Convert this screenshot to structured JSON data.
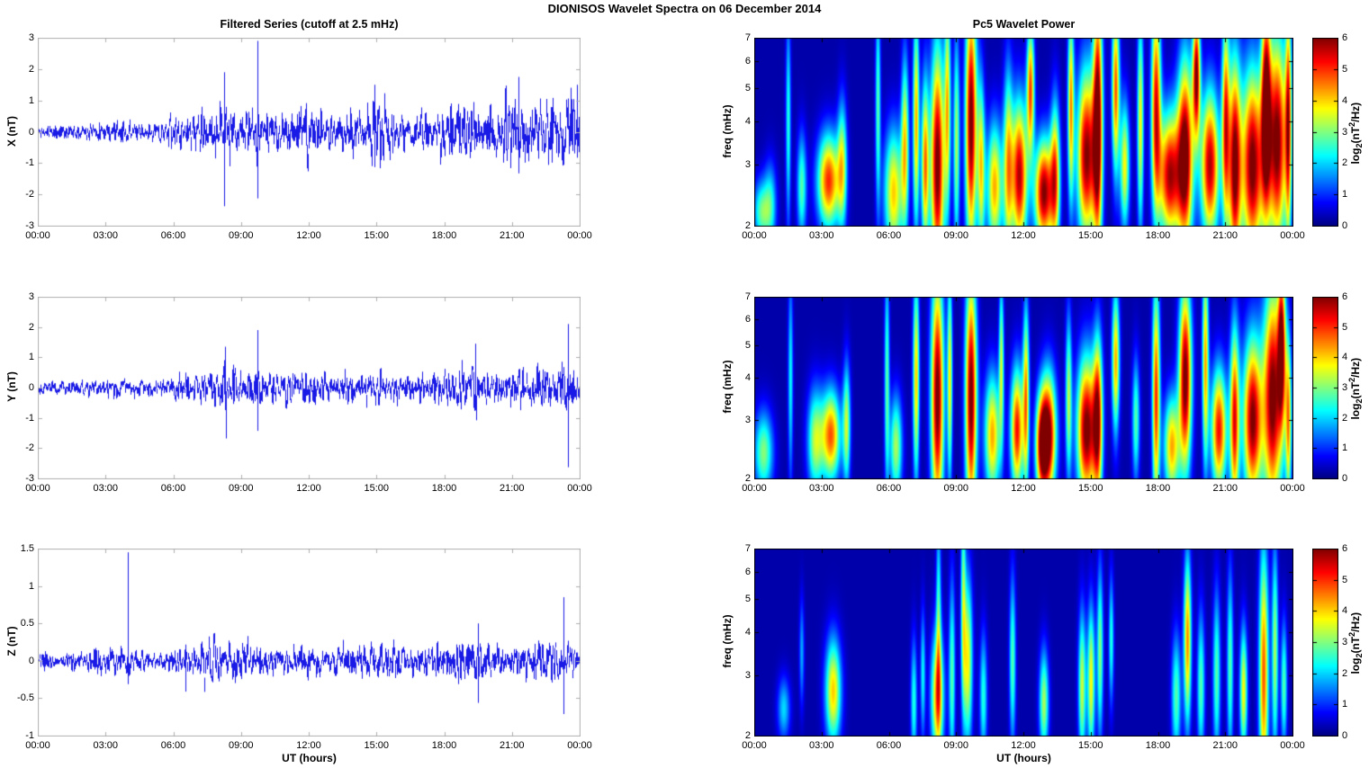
{
  "title": "DIONISOS Wavelet Spectra on 06 December  2014",
  "titles": {
    "left_column": "Filtered Series (cutoff at 2.5 mHz)",
    "right_column": "Pc5 Wavelet Power"
  },
  "time_axis": {
    "label": "UT (hours)",
    "tick_labels": [
      "00:00",
      "03:00",
      "06:00",
      "09:00",
      "12:00",
      "15:00",
      "18:00",
      "21:00",
      "00:00"
    ]
  },
  "colorbar": {
    "tick_labels": [
      "0",
      "1",
      "2",
      "3",
      "4",
      "5",
      "6"
    ],
    "label_parts": [
      "log",
      "2",
      "(nT",
      "2",
      "/Hz)"
    ],
    "clim": [
      0,
      6
    ],
    "colormap": "jet"
  },
  "colors": {
    "series_line": "#1a1ae6",
    "axis_frame_timeseries": "#b0b0b0",
    "axis_frame_spectrogram": "#000000",
    "background": "#ffffff",
    "spectrogram_low": "#00008f",
    "spectrogram_high": "#800000"
  },
  "chart_data": [
    {
      "type": "line",
      "id": "filtered-series-x",
      "title": "Filtered Series (cutoff at 2.5 mHz)",
      "ylabel": "X (nT)",
      "xlabel": "",
      "ylim": [
        -3,
        3
      ],
      "ytick_labels": [
        "3",
        "2",
        "1",
        "0",
        "-1",
        "-2",
        "-3"
      ],
      "x_hours": [
        0,
        24
      ],
      "noise_seed": 11,
      "envelope_peak_nT": [
        [
          0,
          0.3
        ],
        [
          2,
          0.3
        ],
        [
          3,
          0.45
        ],
        [
          3.7,
          0.55
        ],
        [
          4,
          0.4
        ],
        [
          5,
          0.3
        ],
        [
          5.5,
          0.5
        ],
        [
          6,
          0.7
        ],
        [
          7,
          0.8
        ],
        [
          8,
          1.0
        ],
        [
          8.3,
          1.2
        ],
        [
          9,
          0.8
        ],
        [
          9.7,
          1.2
        ],
        [
          10,
          0.8
        ],
        [
          10.7,
          0.9
        ],
        [
          11,
          0.8
        ],
        [
          11.8,
          1.2
        ],
        [
          12.5,
          0.9
        ],
        [
          13,
          0.8
        ],
        [
          14,
          1.2
        ],
        [
          15,
          1.4
        ],
        [
          15.5,
          1.2
        ],
        [
          16,
          0.9
        ],
        [
          17,
          0.8
        ],
        [
          18,
          1.1
        ],
        [
          19,
          1.2
        ],
        [
          20,
          1.3
        ],
        [
          21,
          1.4
        ],
        [
          22,
          1.3
        ],
        [
          23,
          1.6
        ],
        [
          24,
          1.6
        ]
      ],
      "spikes_hour_up_down_nT": [
        [
          8.25,
          1.9,
          -2.35
        ],
        [
          9.7,
          2.9,
          -2.1
        ],
        [
          14.9,
          1.5,
          -1.1
        ],
        [
          21.3,
          1.75,
          -1.3
        ],
        [
          23.9,
          1.5,
          -0.8
        ]
      ]
    },
    {
      "type": "line",
      "id": "filtered-series-y",
      "ylabel": "Y (nT)",
      "xlabel": "",
      "ylim": [
        -3,
        3
      ],
      "ytick_labels": [
        "3",
        "2",
        "1",
        "0",
        "-1",
        "-2",
        "-3"
      ],
      "x_hours": [
        0,
        24
      ],
      "noise_seed": 22,
      "envelope_peak_nT": [
        [
          0,
          0.3
        ],
        [
          2,
          0.3
        ],
        [
          3,
          0.4
        ],
        [
          3.7,
          0.5
        ],
        [
          5,
          0.3
        ],
        [
          6,
          0.6
        ],
        [
          7,
          0.6
        ],
        [
          8,
          0.9
        ],
        [
          8.3,
          1.0
        ],
        [
          9,
          0.7
        ],
        [
          9.7,
          1.0
        ],
        [
          10,
          0.6
        ],
        [
          11,
          0.7
        ],
        [
          12,
          0.7
        ],
        [
          13,
          0.6
        ],
        [
          14,
          0.8
        ],
        [
          15,
          0.8
        ],
        [
          16,
          0.6
        ],
        [
          17,
          0.5
        ],
        [
          18,
          0.9
        ],
        [
          19,
          1.0
        ],
        [
          19.5,
          1.1
        ],
        [
          20,
          0.7
        ],
        [
          21,
          0.8
        ],
        [
          22,
          0.9
        ],
        [
          23,
          0.9
        ],
        [
          23.5,
          1.2
        ],
        [
          24,
          0.7
        ]
      ],
      "spikes_hour_up_down_nT": [
        [
          8.3,
          1.35,
          -1.65
        ],
        [
          9.7,
          1.9,
          -1.4
        ],
        [
          19.4,
          1.45,
          -1.05
        ],
        [
          23.5,
          2.1,
          -2.6
        ]
      ]
    },
    {
      "type": "line",
      "id": "filtered-series-z",
      "ylabel": "Z (nT)",
      "xlabel": "UT (hours)",
      "ylim": [
        -1,
        1.5
      ],
      "ytick_labels": [
        "1.5",
        "1",
        "0.5",
        "0",
        "-0.5",
        "-1"
      ],
      "x_hours": [
        0,
        24
      ],
      "noise_seed": 33,
      "envelope_peak_nT": [
        [
          0,
          0.18
        ],
        [
          2,
          0.15
        ],
        [
          3,
          0.25
        ],
        [
          3.8,
          0.3
        ],
        [
          5,
          0.15
        ],
        [
          6,
          0.25
        ],
        [
          7,
          0.3
        ],
        [
          8,
          0.4
        ],
        [
          8.5,
          0.35
        ],
        [
          9,
          0.35
        ],
        [
          10,
          0.3
        ],
        [
          11,
          0.25
        ],
        [
          12,
          0.3
        ],
        [
          13,
          0.25
        ],
        [
          14,
          0.3
        ],
        [
          15,
          0.35
        ],
        [
          16,
          0.25
        ],
        [
          17,
          0.2
        ],
        [
          18,
          0.3
        ],
        [
          19,
          0.45
        ],
        [
          20,
          0.3
        ],
        [
          21,
          0.3
        ],
        [
          22,
          0.35
        ],
        [
          23,
          0.4
        ],
        [
          24,
          0.25
        ]
      ],
      "spikes_hour_up_down_nT": [
        [
          3.95,
          1.45,
          -0.3
        ],
        [
          6.5,
          0.15,
          -0.4
        ],
        [
          19.5,
          0.5,
          -0.55
        ],
        [
          23.3,
          0.85,
          -0.7
        ]
      ]
    },
    {
      "type": "heatmap",
      "id": "pc5-wavelet-power-x",
      "title": "Pc5 Wavelet Power",
      "ylabel": "freq (mHz)",
      "xlabel": "",
      "freq_mHz_range": [
        2,
        7
      ],
      "yscale": "log",
      "ytick_labels": [
        "7",
        "6",
        "5",
        "4",
        "3",
        "2"
      ],
      "clim": [
        0,
        6
      ],
      "colormap": "jet",
      "background_level": 0.25,
      "blobs_t_f_power_sigT_sigLogF": [
        [
          0.3,
          2.2,
          2.5,
          0.25,
          0.15
        ],
        [
          0.7,
          2.3,
          2.0,
          0.2,
          0.2
        ],
        [
          1.5,
          4.0,
          2.2,
          0.08,
          0.5
        ],
        [
          2.1,
          2.6,
          2.5,
          0.15,
          0.25
        ],
        [
          3.3,
          2.7,
          4.8,
          0.35,
          0.22
        ],
        [
          3.9,
          3.0,
          3.0,
          0.15,
          0.3
        ],
        [
          5.5,
          4.5,
          2.5,
          0.08,
          0.5
        ],
        [
          6.2,
          2.5,
          3.8,
          0.3,
          0.3
        ],
        [
          6.7,
          3.5,
          3.5,
          0.12,
          0.4
        ],
        [
          7.2,
          4.0,
          4.0,
          0.1,
          0.5
        ],
        [
          7.6,
          3.0,
          4.2,
          0.12,
          0.4
        ],
        [
          8.15,
          3.0,
          6.0,
          0.22,
          0.55
        ],
        [
          8.6,
          4.5,
          3.5,
          0.1,
          0.5
        ],
        [
          9.0,
          3.5,
          3.0,
          0.1,
          0.5
        ],
        [
          9.65,
          4.0,
          6.0,
          0.18,
          0.6
        ],
        [
          10.1,
          3.0,
          3.5,
          0.12,
          0.4
        ],
        [
          10.7,
          2.6,
          4.0,
          0.25,
          0.3
        ],
        [
          11.3,
          3.0,
          3.5,
          0.15,
          0.45
        ],
        [
          11.8,
          2.8,
          5.5,
          0.25,
          0.35
        ],
        [
          12.3,
          5.0,
          4.5,
          0.12,
          0.3
        ],
        [
          12.9,
          2.5,
          5.8,
          0.3,
          0.25
        ],
        [
          13.4,
          2.8,
          4.0,
          0.15,
          0.35
        ],
        [
          14.1,
          4.5,
          4.0,
          0.1,
          0.45
        ],
        [
          14.8,
          3.2,
          5.8,
          0.3,
          0.4
        ],
        [
          15.3,
          4.0,
          6.0,
          0.15,
          0.6
        ],
        [
          16.1,
          5.0,
          4.5,
          0.12,
          0.4
        ],
        [
          16.5,
          3.0,
          3.5,
          0.15,
          0.3
        ],
        [
          17.2,
          4.0,
          3.5,
          0.1,
          0.5
        ],
        [
          17.9,
          4.5,
          5.0,
          0.15,
          0.5
        ],
        [
          18.5,
          2.8,
          5.5,
          0.35,
          0.3
        ],
        [
          19.2,
          3.2,
          6.0,
          0.25,
          0.45
        ],
        [
          19.7,
          5.5,
          5.5,
          0.12,
          0.3
        ],
        [
          20.3,
          3.0,
          5.5,
          0.3,
          0.35
        ],
        [
          21.0,
          4.0,
          4.5,
          0.12,
          0.5
        ],
        [
          21.4,
          3.0,
          5.8,
          0.2,
          0.5
        ],
        [
          22.2,
          3.0,
          6.0,
          0.35,
          0.45
        ],
        [
          22.8,
          4.5,
          5.5,
          0.15,
          0.5
        ],
        [
          23.3,
          3.5,
          6.0,
          0.3,
          0.5
        ],
        [
          23.8,
          4.0,
          4.5,
          0.1,
          0.55
        ]
      ]
    },
    {
      "type": "heatmap",
      "id": "pc5-wavelet-power-y",
      "ylabel": "freq (mHz)",
      "xlabel": "",
      "freq_mHz_range": [
        2,
        7
      ],
      "yscale": "log",
      "ytick_labels": [
        "7",
        "6",
        "5",
        "4",
        "3",
        "2"
      ],
      "clim": [
        0,
        6
      ],
      "colormap": "jet",
      "background_level": 0.25,
      "blobs_t_f_power_sigT_sigLogF": [
        [
          0.4,
          2.4,
          2.8,
          0.3,
          0.2
        ],
        [
          1.6,
          4.0,
          2.0,
          0.08,
          0.5
        ],
        [
          2.7,
          2.6,
          3.0,
          0.25,
          0.25
        ],
        [
          3.4,
          2.7,
          4.5,
          0.3,
          0.22
        ],
        [
          4.1,
          2.9,
          3.0,
          0.12,
          0.3
        ],
        [
          5.9,
          4.0,
          2.5,
          0.08,
          0.55
        ],
        [
          6.3,
          2.5,
          3.0,
          0.2,
          0.25
        ],
        [
          7.2,
          4.0,
          3.8,
          0.1,
          0.5
        ],
        [
          8.15,
          3.5,
          6.0,
          0.2,
          0.6
        ],
        [
          8.7,
          4.0,
          3.5,
          0.08,
          0.5
        ],
        [
          9.65,
          3.5,
          6.0,
          0.18,
          0.6
        ],
        [
          10.6,
          2.7,
          4.0,
          0.25,
          0.3
        ],
        [
          11.0,
          4.5,
          3.0,
          0.08,
          0.4
        ],
        [
          11.7,
          2.8,
          5.0,
          0.2,
          0.3
        ],
        [
          12.1,
          3.5,
          4.0,
          0.1,
          0.45
        ],
        [
          12.8,
          2.5,
          4.5,
          0.2,
          0.25
        ],
        [
          13.1,
          2.7,
          5.5,
          0.25,
          0.3
        ],
        [
          14.0,
          3.5,
          3.0,
          0.1,
          0.4
        ],
        [
          14.8,
          2.8,
          6.0,
          0.3,
          0.35
        ],
        [
          15.3,
          3.0,
          5.0,
          0.15,
          0.4
        ],
        [
          16.1,
          4.5,
          4.0,
          0.12,
          0.35
        ],
        [
          17.0,
          3.0,
          2.5,
          0.12,
          0.3
        ],
        [
          17.9,
          3.5,
          4.8,
          0.12,
          0.55
        ],
        [
          18.6,
          2.5,
          4.0,
          0.25,
          0.25
        ],
        [
          19.2,
          4.0,
          6.0,
          0.2,
          0.45
        ],
        [
          20.1,
          4.5,
          4.0,
          0.1,
          0.5
        ],
        [
          20.7,
          2.8,
          5.0,
          0.25,
          0.3
        ],
        [
          21.4,
          3.0,
          5.0,
          0.15,
          0.45
        ],
        [
          22.2,
          3.0,
          5.8,
          0.3,
          0.4
        ],
        [
          23.1,
          3.5,
          6.0,
          0.3,
          0.55
        ],
        [
          23.5,
          5.0,
          5.0,
          0.12,
          0.4
        ],
        [
          23.8,
          3.0,
          4.0,
          0.1,
          0.4
        ]
      ]
    },
    {
      "type": "heatmap",
      "id": "pc5-wavelet-power-z",
      "ylabel": "freq (mHz)",
      "xlabel": "UT (hours)",
      "freq_mHz_range": [
        2,
        7
      ],
      "yscale": "log",
      "ytick_labels": [
        "7",
        "6",
        "5",
        "4",
        "3",
        "2"
      ],
      "clim": [
        0,
        6
      ],
      "colormap": "jet",
      "background_level": 0.25,
      "blobs_t_f_power_sigT_sigLogF": [
        [
          1.3,
          2.4,
          1.8,
          0.2,
          0.15
        ],
        [
          2.1,
          3.5,
          1.5,
          0.08,
          0.25
        ],
        [
          3.5,
          2.7,
          3.8,
          0.25,
          0.25
        ],
        [
          7.1,
          2.5,
          2.2,
          0.1,
          0.3
        ],
        [
          7.5,
          3.0,
          2.0,
          0.08,
          0.3
        ],
        [
          8.15,
          2.6,
          4.2,
          0.2,
          0.3
        ],
        [
          8.2,
          4.5,
          2.2,
          0.08,
          0.5
        ],
        [
          8.8,
          3.0,
          2.5,
          0.1,
          0.45
        ],
        [
          9.3,
          5.0,
          2.5,
          0.08,
          0.5
        ],
        [
          9.5,
          3.3,
          3.5,
          0.15,
          0.4
        ],
        [
          10.2,
          2.6,
          2.2,
          0.12,
          0.3
        ],
        [
          11.5,
          3.3,
          2.5,
          0.1,
          0.4
        ],
        [
          12.9,
          2.5,
          3.0,
          0.15,
          0.25
        ],
        [
          14.6,
          2.8,
          3.2,
          0.12,
          0.35
        ],
        [
          15.0,
          2.9,
          3.5,
          0.12,
          0.35
        ],
        [
          15.4,
          3.5,
          2.8,
          0.1,
          0.4
        ],
        [
          15.9,
          3.8,
          2.2,
          0.08,
          0.3
        ],
        [
          18.8,
          2.6,
          2.5,
          0.15,
          0.3
        ],
        [
          19.3,
          3.8,
          4.2,
          0.12,
          0.4
        ],
        [
          19.9,
          2.8,
          2.5,
          0.12,
          0.35
        ],
        [
          20.6,
          3.0,
          2.5,
          0.12,
          0.4
        ],
        [
          21.2,
          3.2,
          2.5,
          0.1,
          0.45
        ],
        [
          21.8,
          2.7,
          3.5,
          0.12,
          0.3
        ],
        [
          22.7,
          3.0,
          4.5,
          0.15,
          0.6
        ],
        [
          23.2,
          3.5,
          3.0,
          0.1,
          0.5
        ],
        [
          23.6,
          2.8,
          2.5,
          0.1,
          0.3
        ]
      ]
    }
  ]
}
